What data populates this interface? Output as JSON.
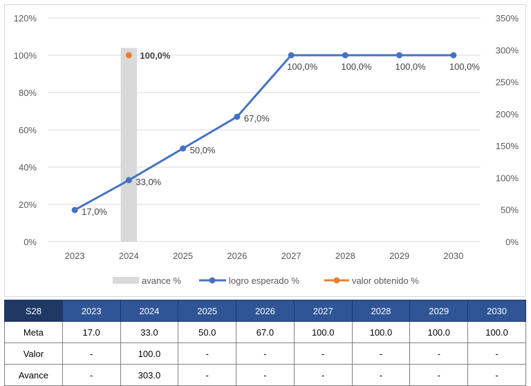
{
  "chart_data": {
    "type": "line",
    "categories": [
      "2023",
      "2024",
      "2025",
      "2026",
      "2027",
      "2028",
      "2029",
      "2030"
    ],
    "series": [
      {
        "name": "avance %",
        "kind": "bar",
        "axis": "right",
        "color": "#d9d9d9",
        "values": [
          null,
          303.0,
          null,
          null,
          null,
          null,
          null,
          null
        ]
      },
      {
        "name": "logro esperado %",
        "kind": "line",
        "axis": "left",
        "color": "#4472c4",
        "values": [
          17.0,
          33.0,
          50.0,
          67.0,
          100.0,
          100.0,
          100.0,
          100.0
        ],
        "labels": [
          "17,0%",
          "33,0%",
          "50,0%",
          "67,0%",
          "100,0%",
          "100,0%",
          "100,0%",
          "100,0%"
        ]
      },
      {
        "name": "valor obtenido %",
        "kind": "marker",
        "axis": "left",
        "color": "#ed7d31",
        "values": [
          null,
          100.0,
          null,
          null,
          null,
          null,
          null,
          null
        ],
        "labels": [
          null,
          "100,0%",
          null,
          null,
          null,
          null,
          null,
          null
        ]
      }
    ],
    "y_left": {
      "ticks": [
        "0%",
        "20%",
        "40%",
        "60%",
        "80%",
        "100%",
        "120%"
      ],
      "range": [
        0,
        120
      ]
    },
    "y_right": {
      "ticks": [
        "0%",
        "50%",
        "100%",
        "150%",
        "200%",
        "250%",
        "300%",
        "350%"
      ],
      "range": [
        0,
        350
      ]
    },
    "grid": true,
    "legend": "bottom"
  },
  "table": {
    "headers": [
      "S28",
      "2023",
      "2024",
      "2025",
      "2026",
      "2027",
      "2028",
      "2029",
      "2030"
    ],
    "rows": [
      [
        "Meta",
        "17.0",
        "33.0",
        "50.0",
        "67.0",
        "100.0",
        "100.0",
        "100.0",
        "100.0"
      ],
      [
        "Valor",
        "-",
        "100.0",
        "-",
        "-",
        "-",
        "-",
        "-",
        "-"
      ],
      [
        "Avance",
        "-",
        "303.0",
        "-",
        "-",
        "-",
        "-",
        "-",
        "-"
      ]
    ]
  }
}
